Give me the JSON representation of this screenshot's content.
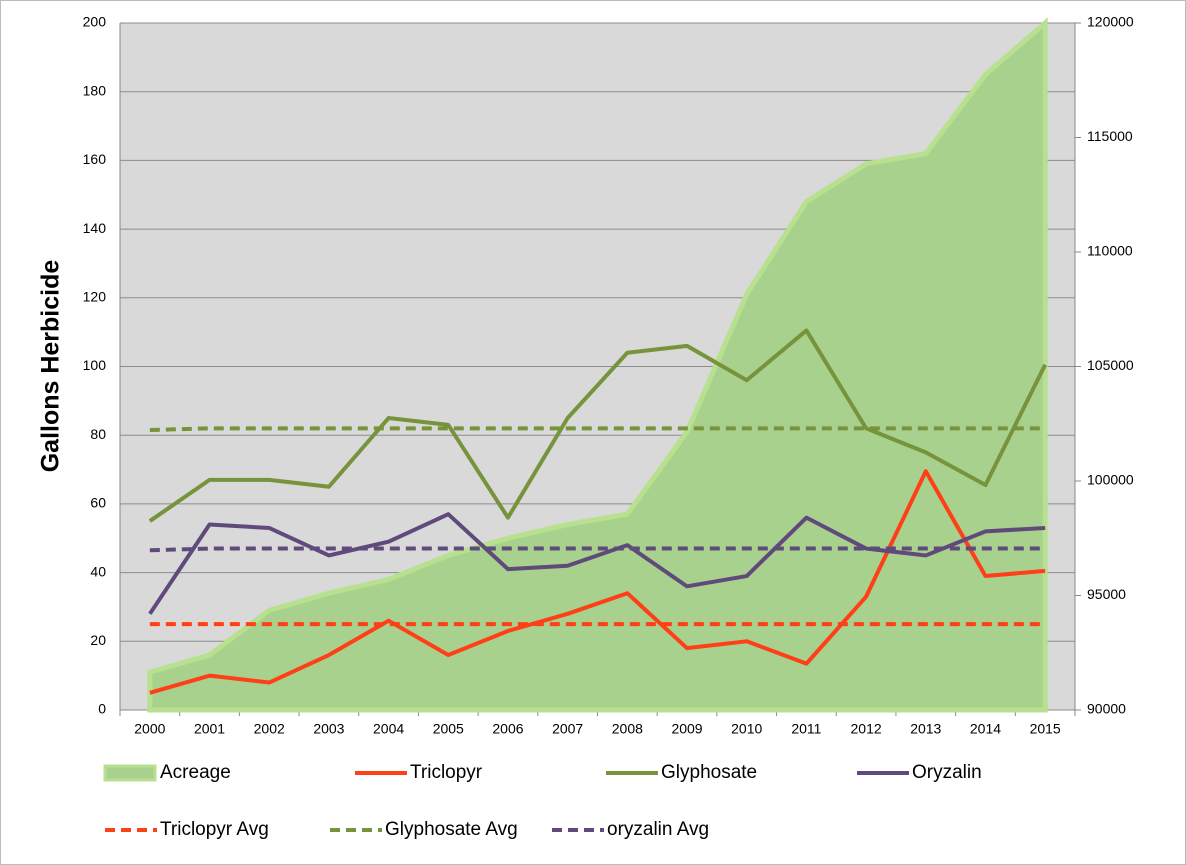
{
  "chart_data": {
    "type": "line",
    "y_label": "Gallons Herbicide",
    "categories": [
      "2000",
      "2001",
      "2002",
      "2003",
      "2004",
      "2005",
      "2006",
      "2007",
      "2008",
      "2009",
      "2010",
      "2011",
      "2012",
      "2013",
      "2014",
      "2015"
    ],
    "ylim": [
      0,
      200
    ],
    "yticks": [
      0,
      20,
      40,
      60,
      80,
      100,
      120,
      140,
      160,
      180,
      200
    ],
    "y2lim": [
      90000,
      120000
    ],
    "y2ticks": [
      90000,
      95000,
      100000,
      105000,
      110000,
      115000,
      120000
    ],
    "grid": true,
    "series": [
      {
        "name": "Acreage",
        "type": "area",
        "axis": "y2",
        "color": "#a9d18e",
        "values": [
          91650,
          92400,
          94350,
          95100,
          95700,
          96750,
          97500,
          98100,
          98550,
          102150,
          108150,
          112200,
          113850,
          114300,
          117750,
          120000
        ]
      },
      {
        "name": "Triclopyr",
        "color": "#ff3f17",
        "values": [
          5,
          10,
          8,
          16,
          26,
          16,
          23,
          28,
          34,
          18,
          20,
          13.5,
          33,
          69.5,
          39,
          40.5
        ]
      },
      {
        "name": "Glyphosate",
        "color": "#77933c",
        "values": [
          55,
          67,
          67,
          65,
          85,
          83,
          56,
          85,
          104,
          106,
          96,
          110.5,
          82,
          75,
          65.5,
          100.5
        ]
      },
      {
        "name": "Oryzalin",
        "color": "#604a7b",
        "values": [
          28,
          54,
          53,
          45,
          49,
          57,
          41,
          42,
          48,
          36,
          39,
          56,
          47,
          45,
          52,
          53
        ]
      },
      {
        "name": "Triclopyr Avg",
        "dashed": true,
        "color": "#ff3f17",
        "values": [
          25,
          25,
          25,
          25,
          25,
          25,
          25,
          25,
          25,
          25,
          25,
          25,
          25,
          25,
          25,
          25
        ]
      },
      {
        "name": "Glyphosate Avg",
        "dashed": true,
        "color": "#77933c",
        "values": [
          81.5,
          82,
          82,
          82,
          82,
          82,
          82,
          82,
          82,
          82,
          82,
          82,
          82,
          82,
          82,
          82
        ]
      },
      {
        "name": "oryzalin Avg",
        "dashed": true,
        "color": "#604a7b",
        "values": [
          46.5,
          47,
          47,
          47,
          47,
          47,
          47,
          47,
          47,
          47,
          47,
          47,
          47,
          47,
          47,
          47
        ]
      }
    ]
  }
}
